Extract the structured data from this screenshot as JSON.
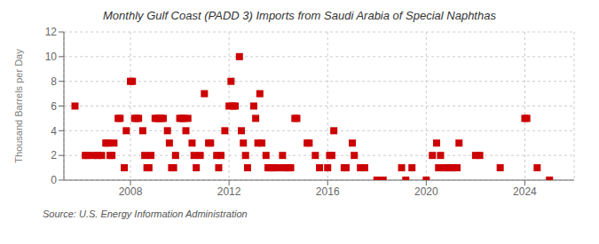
{
  "chart_data": {
    "type": "scatter",
    "title": "Monthly Gulf Coast (PADD 3) Imports from Saudi Arabia of Special Naphthas",
    "ylabel": "Thousand Barrels per Day",
    "annotation": "Source: U.S. Energy Information Administration",
    "color": "#cc0000",
    "marker": "square",
    "grid": true,
    "xlim": [
      2005.3,
      2026.0
    ],
    "xticks": [
      2008,
      2012,
      2016,
      2020,
      2024
    ],
    "ylim": [
      0,
      12
    ],
    "yticks": [
      0,
      2,
      4,
      6,
      8,
      10,
      12
    ],
    "x": [
      2005.75,
      2006.17,
      2006.25,
      2006.5,
      2006.67,
      2006.83,
      2007.0,
      2007.08,
      2007.17,
      2007.25,
      2007.33,
      2007.5,
      2007.58,
      2007.75,
      2007.83,
      2008.0,
      2008.08,
      2008.17,
      2008.25,
      2008.33,
      2008.5,
      2008.58,
      2008.67,
      2008.75,
      2008.83,
      2009.0,
      2009.08,
      2009.17,
      2009.25,
      2009.33,
      2009.5,
      2009.58,
      2009.67,
      2009.75,
      2009.83,
      2010.0,
      2010.08,
      2010.17,
      2010.25,
      2010.33,
      2010.5,
      2010.58,
      2010.67,
      2010.83,
      2011.0,
      2011.17,
      2011.25,
      2011.5,
      2011.58,
      2011.67,
      2011.83,
      2012.0,
      2012.08,
      2012.17,
      2012.25,
      2012.42,
      2012.5,
      2012.58,
      2012.67,
      2012.75,
      2013.0,
      2013.08,
      2013.17,
      2013.25,
      2013.33,
      2013.5,
      2013.58,
      2013.67,
      2013.75,
      2013.83,
      2014.0,
      2014.17,
      2014.25,
      2014.33,
      2014.42,
      2014.5,
      2014.67,
      2014.75,
      2015.17,
      2015.25,
      2015.5,
      2015.67,
      2016.0,
      2016.08,
      2016.17,
      2016.25,
      2016.67,
      2016.75,
      2017.0,
      2017.08,
      2017.33,
      2017.5,
      2018.0,
      2018.25,
      2019.0,
      2019.17,
      2019.42,
      2020.0,
      2020.25,
      2020.42,
      2020.5,
      2020.58,
      2020.75,
      2020.83,
      2021.0,
      2021.08,
      2021.25,
      2021.33,
      2022.0,
      2022.17,
      2023.0,
      2024.0,
      2024.08,
      2024.5,
      2025.0
    ],
    "values": [
      6,
      2,
      2,
      2,
      2,
      2,
      3,
      3,
      2,
      2,
      3,
      5,
      5,
      1,
      4,
      8,
      8,
      5,
      5,
      5,
      4,
      2,
      1,
      1,
      2,
      5,
      5,
      5,
      5,
      5,
      4,
      3,
      1,
      1,
      2,
      5,
      5,
      5,
      4,
      5,
      3,
      2,
      1,
      2,
      7,
      3,
      3,
      2,
      1,
      2,
      4,
      6,
      8,
      6,
      6,
      10,
      4,
      3,
      2,
      1,
      6,
      5,
      3,
      7,
      3,
      2,
      1,
      1,
      1,
      1,
      1,
      2,
      1,
      1,
      1,
      1,
      5,
      5,
      3,
      3,
      2,
      1,
      1,
      2,
      2,
      4,
      1,
      1,
      3,
      2,
      1,
      1,
      0,
      0,
      1,
      0,
      1,
      0,
      2,
      3,
      1,
      2,
      1,
      1,
      1,
      1,
      1,
      3,
      2,
      2,
      1,
      5,
      5,
      1,
      0
    ]
  }
}
